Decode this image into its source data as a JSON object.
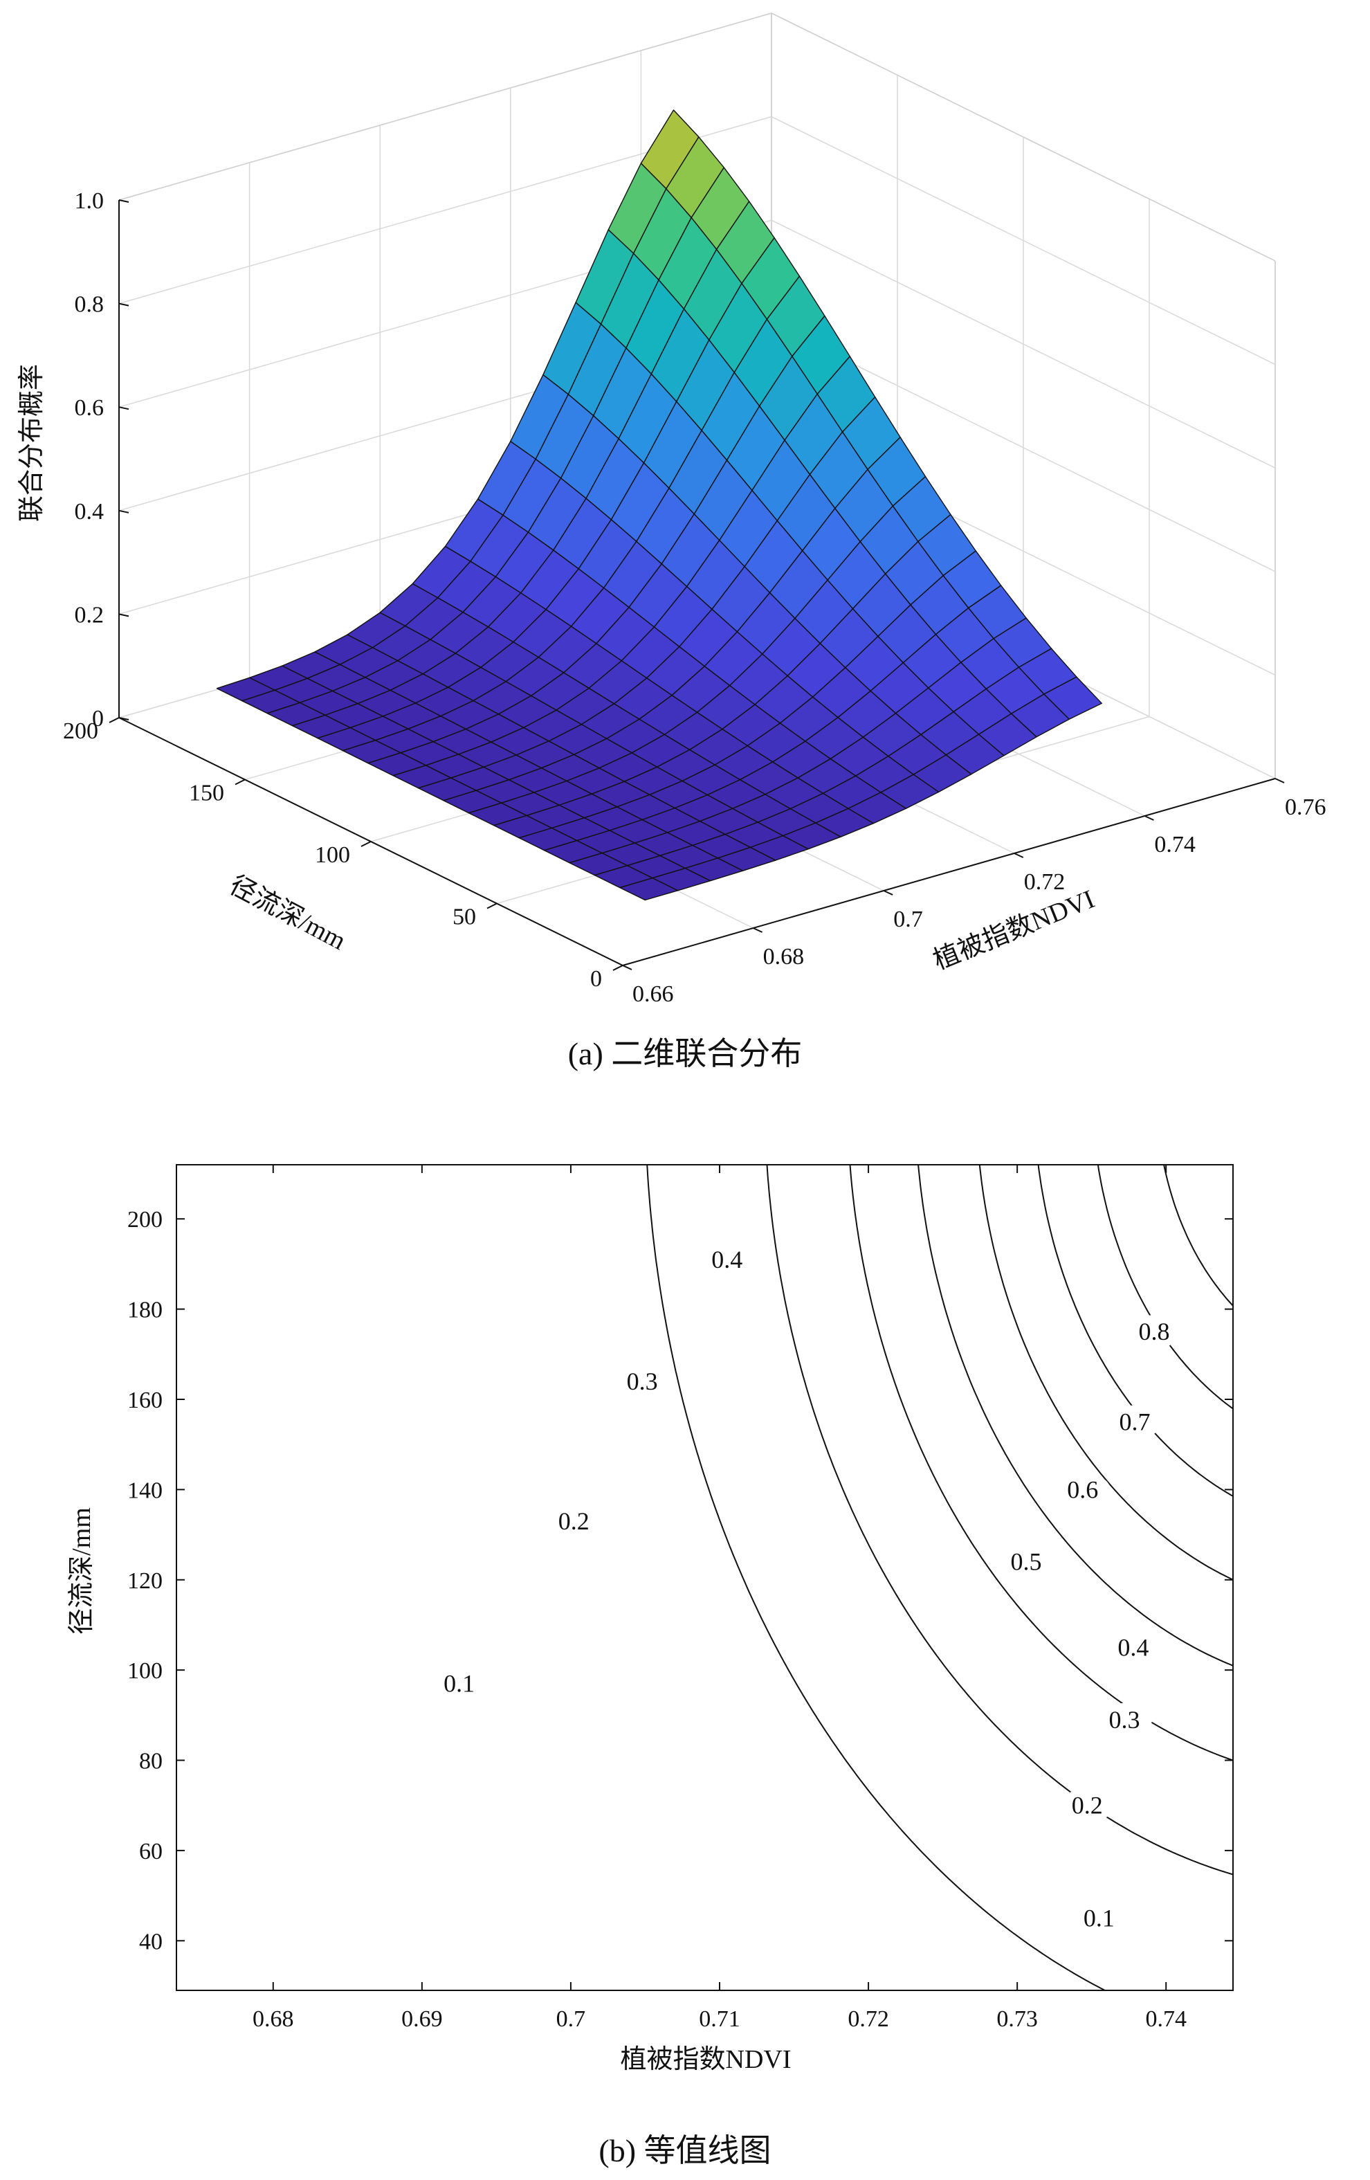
{
  "chart_data": [
    {
      "type": "surface",
      "caption": "(a) 二维联合分布",
      "xlabel": "植被指数NDVI",
      "ylabel": "径流深/mm",
      "zlabel": "联合分布概率",
      "xticks": [
        "0.66",
        "0.68",
        "0.7",
        "0.72",
        "0.74",
        "0.76"
      ],
      "yticks": [
        "0",
        "50",
        "100",
        "150",
        "200"
      ],
      "zticks": [
        "0",
        "0.2",
        "0.4",
        "0.6",
        "0.8",
        "1.0"
      ],
      "xlim": [
        0.66,
        0.76
      ],
      "ylim": [
        0,
        200
      ],
      "zlim": [
        0,
        1.0
      ],
      "grid": true,
      "colormap": "parula",
      "surface": {
        "ndvi": [
          0.675,
          0.68,
          0.685,
          0.69,
          0.695,
          0.7,
          0.705,
          0.71,
          0.715,
          0.72,
          0.725,
          0.73,
          0.735,
          0.74,
          0.745
        ],
        "runoff_mm": [
          30,
          40,
          50,
          60,
          70,
          80,
          90,
          100,
          110,
          120,
          130,
          140,
          150,
          160,
          170,
          180,
          190,
          200
        ],
        "max_probability": 0.96
      }
    },
    {
      "type": "contour",
      "caption": "(b) 等值线图",
      "xlabel": "植被指数NDVI",
      "ylabel": "径流深/mm",
      "xticks": [
        "0.68",
        "0.69",
        "0.7",
        "0.71",
        "0.72",
        "0.73",
        "0.74"
      ],
      "yticks": [
        "40",
        "60",
        "80",
        "100",
        "120",
        "140",
        "160",
        "180",
        "200"
      ],
      "xlim": [
        0.6735,
        0.7445
      ],
      "ylim": [
        29,
        212
      ],
      "levels": [
        0.1,
        0.2,
        0.3,
        0.4,
        0.5,
        0.6,
        0.7,
        0.8
      ],
      "level_labels": [
        {
          "text": "0.1",
          "x": 0.7355,
          "y": 45
        },
        {
          "text": "0.2",
          "x": 0.7347,
          "y": 70
        },
        {
          "text": "0.3",
          "x": 0.7372,
          "y": 89
        },
        {
          "text": "0.4",
          "x": 0.7378,
          "y": 105
        },
        {
          "text": "0.1",
          "x": 0.6925,
          "y": 97
        },
        {
          "text": "0.2",
          "x": 0.7002,
          "y": 133
        },
        {
          "text": "0.3",
          "x": 0.7048,
          "y": 164
        },
        {
          "text": "0.4",
          "x": 0.7105,
          "y": 191
        },
        {
          "text": "0.5",
          "x": 0.7306,
          "y": 124
        },
        {
          "text": "0.6",
          "x": 0.7344,
          "y": 140
        },
        {
          "text": "0.7",
          "x": 0.7379,
          "y": 155
        },
        {
          "text": "0.8",
          "x": 0.7392,
          "y": 175
        }
      ]
    }
  ]
}
